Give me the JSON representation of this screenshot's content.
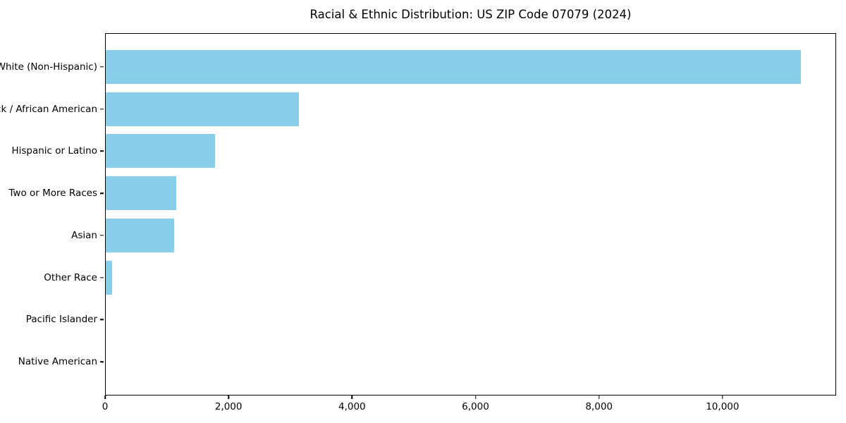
{
  "title": "Racial & Ethnic Distribution: US ZIP Code 07079 (2024)",
  "chart_data": {
    "type": "bar",
    "orientation": "horizontal",
    "title": "Racial & Ethnic Distribution: US ZIP Code 07079 (2024)",
    "categories": [
      "White (Non-Hispanic)",
      "Black / African American",
      "Hispanic or Latino",
      "Two or More Races",
      "Asian",
      "Other Race",
      "Pacific Islander",
      "Native American"
    ],
    "values": [
      11280,
      3140,
      1770,
      1140,
      1105,
      105,
      0,
      0
    ],
    "xlabel": "",
    "ylabel": "",
    "xlim": [
      0,
      11840
    ],
    "xticks": [
      0,
      2000,
      4000,
      6000,
      8000,
      10000
    ],
    "xtick_labels": [
      "0",
      "2,000",
      "4,000",
      "6,000",
      "8,000",
      "10,000"
    ],
    "bar_color": "#87CEEB",
    "background_color": "#ffffff",
    "frame_color": "#000000",
    "grid": false,
    "legend": false
  }
}
